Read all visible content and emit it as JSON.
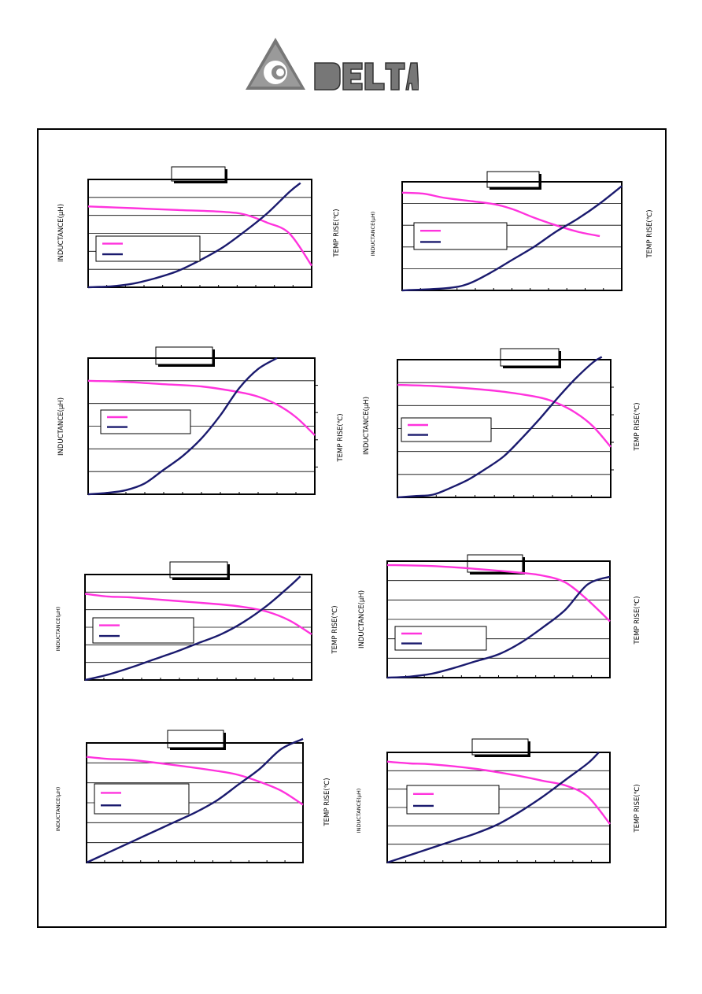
{
  "logo": {
    "name": "delta-logo",
    "text": "DELTA"
  },
  "colors": {
    "inductance": "#ff33dd",
    "temp_rise": "#1a1a6e",
    "axis": "#000000",
    "grid": "#000000"
  },
  "chart_data": [
    {
      "type": "line",
      "title": "",
      "ylabel": "INDUCTANCE(µH)",
      "y2label": "TEMP RISE(℃)",
      "xlim": [
        0,
        10
      ],
      "ylim": [
        0,
        6
      ],
      "y2lim": [
        0,
        6
      ],
      "grid": true,
      "legend": "center-left",
      "series": [
        {
          "axis": "left",
          "x": [
            0,
            2,
            4,
            6,
            7,
            8,
            9,
            10
          ],
          "values": [
            4.5,
            4.4,
            4.3,
            4.2,
            4.05,
            3.6,
            3.0,
            1.2
          ]
        },
        {
          "axis": "right",
          "x": [
            0,
            1,
            2,
            3,
            4,
            5,
            6,
            7,
            8,
            9,
            9.5
          ],
          "values": [
            0,
            0.05,
            0.2,
            0.5,
            0.9,
            1.5,
            2.2,
            3.1,
            4.1,
            5.3,
            5.8
          ]
        }
      ]
    },
    {
      "type": "line",
      "title": "",
      "ylabel": "INDUCTANCE(µH)",
      "y2label": "TEMP RISE(℃)",
      "xlim": [
        0,
        10
      ],
      "ylim": [
        0,
        5
      ],
      "y2lim": [
        0,
        5
      ],
      "grid": true,
      "legend": "center-left",
      "series": [
        {
          "axis": "left",
          "x": [
            0,
            1,
            2,
            4,
            5,
            6,
            7,
            8,
            9
          ],
          "values": [
            4.5,
            4.45,
            4.25,
            4.0,
            3.75,
            3.35,
            3.0,
            2.7,
            2.5
          ]
        },
        {
          "axis": "right",
          "x": [
            0,
            2,
            3,
            4,
            5,
            6,
            7,
            8,
            9,
            10
          ],
          "values": [
            0,
            0.1,
            0.3,
            0.8,
            1.4,
            2.0,
            2.7,
            3.3,
            4.0,
            4.8
          ]
        }
      ]
    },
    {
      "type": "line",
      "title": "",
      "ylabel": "INDUCTANCE(µH)",
      "y2label": "TEMP RISE(℃)",
      "xlim": [
        0,
        12
      ],
      "ylim": [
        0,
        6
      ],
      "y2lim": [
        0,
        5
      ],
      "grid": true,
      "legend": "center-left",
      "series": [
        {
          "axis": "left",
          "x": [
            0,
            2,
            4,
            6,
            8,
            9,
            10,
            11,
            12
          ],
          "values": [
            5.0,
            4.95,
            4.85,
            4.75,
            4.5,
            4.3,
            3.95,
            3.4,
            2.6
          ]
        },
        {
          "axis": "right",
          "x": [
            0,
            1,
            2,
            3,
            4,
            5,
            6,
            7,
            8,
            9,
            10
          ],
          "values": [
            0,
            0.05,
            0.15,
            0.4,
            0.9,
            1.4,
            2.05,
            2.9,
            3.9,
            4.6,
            5.0
          ]
        }
      ]
    },
    {
      "type": "line",
      "title": "",
      "ylabel": "INDUCTANCE(µH)",
      "y2label": "TEMP RISE(℃)",
      "xlim": [
        0,
        12
      ],
      "ylim": [
        0,
        6
      ],
      "y2lim": [
        0,
        5
      ],
      "grid": true,
      "legend": "center-left",
      "series": [
        {
          "axis": "left",
          "x": [
            0,
            2,
            4,
            6,
            8,
            9,
            10,
            11,
            12
          ],
          "values": [
            4.9,
            4.85,
            4.75,
            4.6,
            4.35,
            4.1,
            3.7,
            3.1,
            2.2
          ]
        },
        {
          "axis": "right",
          "x": [
            0,
            1,
            2,
            3,
            4,
            5,
            6,
            7,
            8,
            9,
            10,
            11,
            11.5
          ],
          "values": [
            0,
            0.05,
            0.1,
            0.35,
            0.65,
            1.05,
            1.5,
            2.15,
            2.85,
            3.6,
            4.3,
            4.9,
            5.1
          ]
        }
      ]
    },
    {
      "type": "line",
      "title": "",
      "ylabel": "INDUCTANCE(µH)",
      "y2label": "TEMP RISE(℃)",
      "xlim": [
        0,
        10
      ],
      "ylim": [
        0,
        6
      ],
      "y2lim": [
        0,
        6
      ],
      "grid": true,
      "legend": "center-left",
      "series": [
        {
          "axis": "left",
          "x": [
            0,
            1,
            2,
            4,
            6,
            7,
            8,
            9,
            10
          ],
          "values": [
            4.9,
            4.75,
            4.7,
            4.5,
            4.3,
            4.15,
            3.9,
            3.4,
            2.6
          ]
        },
        {
          "axis": "right",
          "x": [
            0,
            1,
            2,
            3,
            4,
            5,
            6,
            7,
            8,
            9,
            9.5
          ],
          "values": [
            0,
            0.3,
            0.7,
            1.15,
            1.6,
            2.1,
            2.6,
            3.3,
            4.2,
            5.3,
            5.9
          ]
        }
      ]
    },
    {
      "type": "line",
      "title": "",
      "ylabel": "INDUCTANCE(µH)",
      "y2label": "TEMP RISE(℃)",
      "xlim": [
        0,
        10
      ],
      "ylim": [
        0,
        6
      ],
      "y2lim": [
        0,
        6
      ],
      "grid": true,
      "legend": "center-left",
      "series": [
        {
          "axis": "left",
          "x": [
            0,
            2,
            4,
            6,
            7,
            8,
            9,
            10
          ],
          "values": [
            5.8,
            5.75,
            5.6,
            5.4,
            5.25,
            4.9,
            4.0,
            2.9
          ]
        },
        {
          "axis": "right",
          "x": [
            0,
            1,
            2,
            3,
            4,
            5,
            6,
            7,
            8,
            9,
            10
          ],
          "values": [
            0,
            0.05,
            0.2,
            0.5,
            0.85,
            1.2,
            1.8,
            2.6,
            3.5,
            4.8,
            5.2
          ]
        }
      ]
    },
    {
      "type": "line",
      "title": "",
      "ylabel": "INDUCTANCE(µH)",
      "y2label": "TEMP RISE(℃)",
      "xlim": [
        0,
        10
      ],
      "ylim": [
        0,
        6
      ],
      "y2lim": [
        0,
        6
      ],
      "grid": true,
      "legend": "center-left",
      "series": [
        {
          "axis": "left",
          "x": [
            0,
            1,
            2,
            4,
            6,
            7,
            8,
            9,
            10
          ],
          "values": [
            5.3,
            5.2,
            5.15,
            4.9,
            4.6,
            4.4,
            4.05,
            3.6,
            2.9
          ]
        },
        {
          "axis": "right",
          "x": [
            0,
            1,
            2,
            3,
            4,
            5,
            6,
            7,
            8,
            9,
            10
          ],
          "values": [
            0,
            0.5,
            1.0,
            1.5,
            2.0,
            2.5,
            3.1,
            3.9,
            4.7,
            5.7,
            6.2
          ]
        }
      ]
    },
    {
      "type": "line",
      "title": "",
      "ylabel": "INDUCTANCE(µH)",
      "y2label": "TEMP RISE(℃)",
      "xlim": [
        0,
        10
      ],
      "ylim": [
        0,
        6
      ],
      "y2lim": [
        0,
        6
      ],
      "grid": true,
      "legend": "center-left",
      "series": [
        {
          "axis": "left",
          "x": [
            0,
            1,
            2,
            4,
            6,
            7,
            8,
            9,
            10
          ],
          "values": [
            5.5,
            5.4,
            5.35,
            5.1,
            4.7,
            4.45,
            4.2,
            3.6,
            2.1
          ]
        },
        {
          "axis": "right",
          "x": [
            0,
            1,
            2,
            3,
            4,
            5,
            6,
            7,
            8,
            9,
            9.5
          ],
          "values": [
            0,
            0.4,
            0.8,
            1.2,
            1.6,
            2.1,
            2.8,
            3.6,
            4.5,
            5.4,
            6.0
          ]
        }
      ]
    }
  ]
}
